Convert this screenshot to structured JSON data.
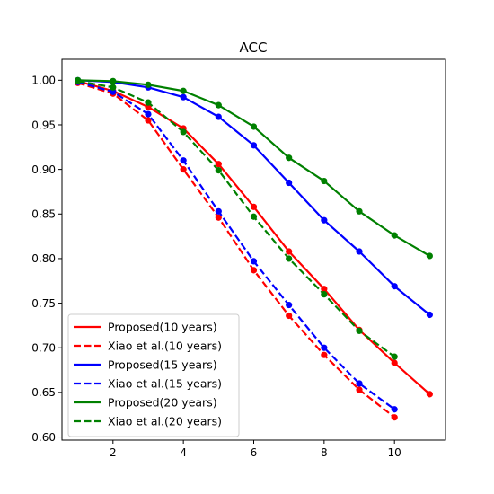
{
  "chart_data": {
    "type": "line",
    "title": "ACC",
    "xlabel": "",
    "ylabel": "",
    "xlim": [
      0.55,
      11.45
    ],
    "ylim": [
      0.5965,
      1.0235
    ],
    "xticks": [
      2,
      4,
      6,
      8,
      10
    ],
    "yticks": [
      0.6,
      0.65,
      0.7,
      0.75,
      0.8,
      0.85,
      0.9,
      0.95,
      1.0
    ],
    "ytick_labels": [
      "0.60",
      "0.65",
      "0.70",
      "0.75",
      "0.80",
      "0.85",
      "0.90",
      "0.95",
      "1.00"
    ],
    "grid": false,
    "legend_position": "lower-left",
    "series": [
      {
        "name": "Proposed(10 years)",
        "color": "#ff0000",
        "style": "solid",
        "x": [
          1,
          2,
          3,
          4,
          5,
          6,
          7,
          8,
          9,
          10,
          11
        ],
        "y": [
          0.999,
          0.988,
          0.97,
          0.946,
          0.906,
          0.858,
          0.808,
          0.766,
          0.72,
          0.683,
          0.648
        ]
      },
      {
        "name": "Xiao et al.(10 years)",
        "color": "#ff0000",
        "style": "dashed",
        "x": [
          1,
          2,
          3,
          4,
          5,
          6,
          7,
          8,
          9,
          10
        ],
        "y": [
          0.997,
          0.985,
          0.955,
          0.9,
          0.846,
          0.787,
          0.736,
          0.692,
          0.653,
          0.622
        ]
      },
      {
        "name": "Proposed(15 years)",
        "color": "#0000ff",
        "style": "solid",
        "x": [
          1,
          2,
          3,
          4,
          5,
          6,
          7,
          8,
          9,
          10,
          11
        ],
        "y": [
          1.0,
          0.998,
          0.992,
          0.981,
          0.959,
          0.927,
          0.885,
          0.843,
          0.808,
          0.769,
          0.737
        ]
      },
      {
        "name": "Xiao et al.(15 years)",
        "color": "#0000ff",
        "style": "dashed",
        "x": [
          1,
          2,
          3,
          4,
          5,
          6,
          7,
          8,
          9,
          10
        ],
        "y": [
          0.998,
          0.987,
          0.962,
          0.91,
          0.853,
          0.797,
          0.748,
          0.7,
          0.66,
          0.631
        ]
      },
      {
        "name": "Proposed(20 years)",
        "color": "#008000",
        "style": "solid",
        "x": [
          1,
          2,
          3,
          4,
          5,
          6,
          7,
          8,
          9,
          10,
          11
        ],
        "y": [
          1.0,
          0.999,
          0.995,
          0.988,
          0.972,
          0.948,
          0.913,
          0.887,
          0.853,
          0.826,
          0.803
        ]
      },
      {
        "name": "Xiao et al.(20 years)",
        "color": "#008000",
        "style": "dashed",
        "x": [
          1,
          2,
          3,
          4,
          5,
          6,
          7,
          8,
          9,
          10
        ],
        "y": [
          0.999,
          0.992,
          0.975,
          0.942,
          0.899,
          0.847,
          0.8,
          0.76,
          0.719,
          0.69
        ]
      }
    ]
  }
}
